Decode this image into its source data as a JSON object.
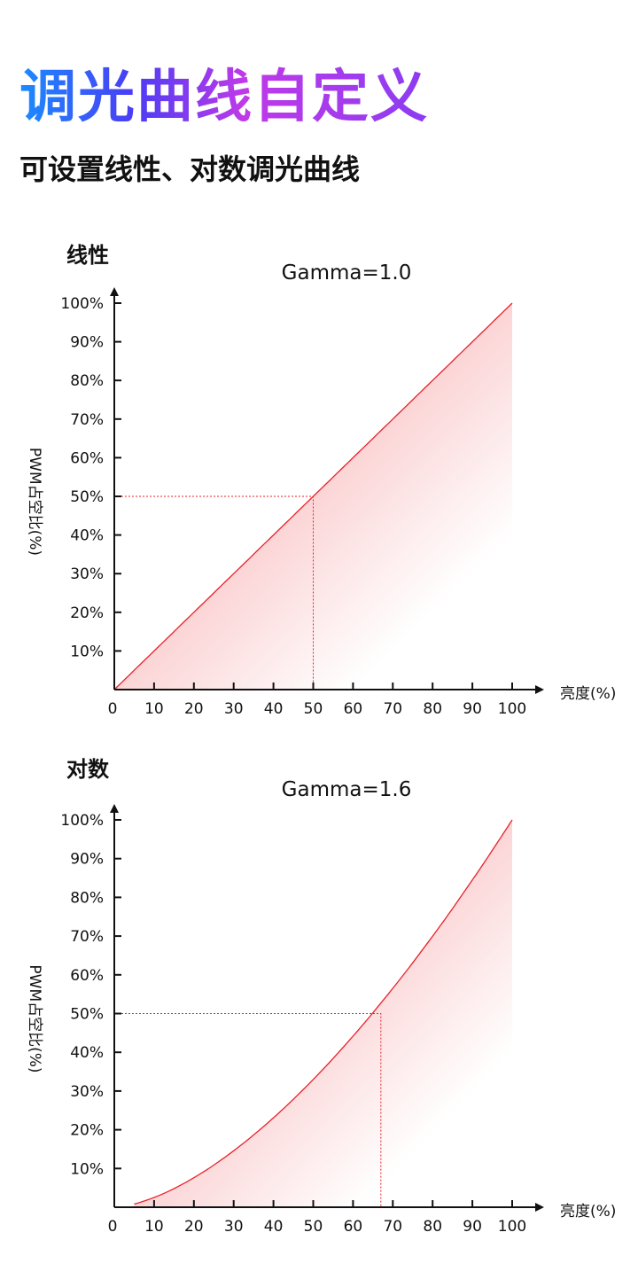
{
  "header": {
    "title": "调光曲线自定义",
    "subtitle": "可设置线性、对数调光曲线"
  },
  "colors": {
    "curve": "#e8222a",
    "fill": "#f7a5a8",
    "axis": "#111111"
  },
  "chart_data": [
    {
      "type": "area",
      "section_label": "线性",
      "title": "Gamma=1.0",
      "gamma": 1.0,
      "xlabel": "亮度(%)",
      "ylabel": "PWM占空比(%)",
      "xlim": [
        0,
        100
      ],
      "ylim": [
        0,
        100
      ],
      "x_ticks": [
        "0",
        "10",
        "20",
        "30",
        "40",
        "50",
        "60",
        "70",
        "80",
        "90",
        "100"
      ],
      "y_ticks": [
        "10%",
        "20%",
        "30%",
        "40%",
        "50%",
        "60%",
        "70%",
        "80%",
        "90%",
        "100%"
      ],
      "x": [
        0,
        10,
        20,
        30,
        40,
        50,
        60,
        70,
        80,
        90,
        100
      ],
      "y": [
        0,
        10,
        20,
        30,
        40,
        50,
        60,
        70,
        80,
        90,
        100
      ],
      "reference_point": {
        "x": 50,
        "y": 50
      }
    },
    {
      "type": "area",
      "section_label": "对数",
      "title": "Gamma=1.6",
      "gamma": 1.6,
      "xlabel": "亮度(%)",
      "ylabel": "PWM占空比(%)",
      "xlim": [
        0,
        100
      ],
      "ylim": [
        0,
        100
      ],
      "x_ticks": [
        "0",
        "10",
        "20",
        "30",
        "40",
        "50",
        "60",
        "70",
        "80",
        "90",
        "100"
      ],
      "y_ticks": [
        "10%",
        "20%",
        "30%",
        "40%",
        "50%",
        "60%",
        "70%",
        "80%",
        "90%",
        "100%"
      ],
      "x": [
        5,
        10,
        20,
        30,
        40,
        50,
        60,
        70,
        80,
        90,
        100
      ],
      "y": [
        0,
        2.5,
        7.6,
        14.6,
        23.1,
        33,
        44.1,
        56.5,
        70,
        84.5,
        100
      ],
      "reference_point": {
        "x": 67,
        "y": 50
      }
    }
  ]
}
